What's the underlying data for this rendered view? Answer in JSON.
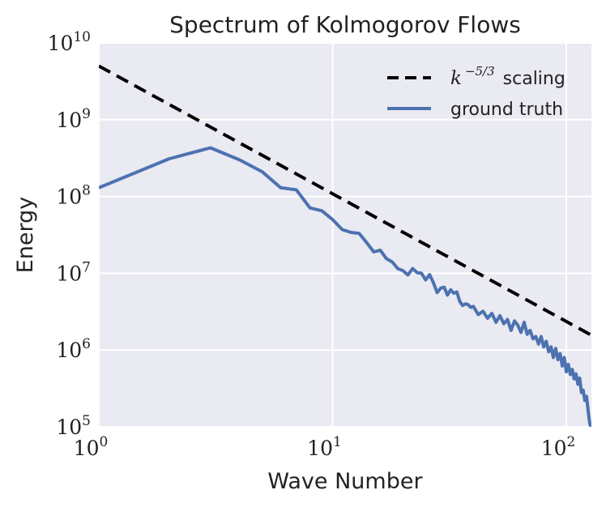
{
  "chart_data": {
    "type": "line",
    "title": "Spectrum of Kolmogorov Flows",
    "xlabel": "Wave Number",
    "ylabel": "Energy",
    "xscale": "log",
    "yscale": "log",
    "xlim": [
      1,
      128
    ],
    "ylim": [
      100000,
      10000000000
    ],
    "grid": true,
    "legend_position": "top-right",
    "x_ticks": [
      {
        "value": 1,
        "base": "10",
        "exp": "0"
      },
      {
        "value": 10,
        "base": "10",
        "exp": "1"
      },
      {
        "value": 100,
        "base": "10",
        "exp": "2"
      }
    ],
    "y_ticks": [
      {
        "value": 100000,
        "base": "10",
        "exp": "5"
      },
      {
        "value": 1000000,
        "base": "10",
        "exp": "6"
      },
      {
        "value": 10000000,
        "base": "10",
        "exp": "7"
      },
      {
        "value": 100000000,
        "base": "10",
        "exp": "8"
      },
      {
        "value": 1000000000,
        "base": "10",
        "exp": "9"
      },
      {
        "value": 10000000000,
        "base": "10",
        "exp": "10"
      }
    ],
    "series": [
      {
        "name": "k^{-5/3} scaling",
        "legend_base": "k",
        "legend_exp": "−5/3",
        "legend_suffix": "scaling",
        "style": "dashed",
        "color": "#000000",
        "x": [
          1,
          128
        ],
        "y": [
          5000000000,
          1560000
        ]
      },
      {
        "name": "ground truth",
        "legend_label": "ground truth",
        "style": "solid",
        "color": "#4c72b0",
        "x": [
          1,
          2,
          3,
          4,
          5,
          6,
          7,
          8,
          9,
          10,
          11,
          12,
          13,
          14,
          15,
          16,
          17,
          18,
          19,
          20,
          21,
          22,
          23,
          24,
          25,
          26,
          27,
          28,
          29,
          30,
          31,
          32,
          33,
          34,
          35,
          36,
          37,
          38,
          39,
          40,
          42,
          44,
          46,
          48,
          50,
          52,
          54,
          56,
          58,
          60,
          62,
          64,
          66,
          68,
          70,
          72,
          74,
          76,
          78,
          80,
          82,
          84,
          86,
          88,
          90,
          92,
          94,
          96,
          98,
          100,
          102,
          104,
          106,
          108,
          110,
          112,
          114,
          116,
          118,
          120,
          122,
          124,
          126,
          128
        ],
        "y": [
          130000000,
          310000000,
          430000000,
          300000000,
          210000000,
          130000000,
          122000000,
          71000000,
          65000000,
          50000000,
          37000000,
          34000000,
          33000000,
          25000000,
          19000000,
          20000000,
          15500000,
          14000000,
          11500000,
          10800000,
          9500000,
          11500000,
          10200000,
          10000000,
          8200000,
          9600000,
          7500000,
          5600000,
          6400000,
          6600000,
          5200000,
          6100000,
          5500000,
          5700000,
          4300000,
          3800000,
          4000000,
          3900000,
          3600000,
          3700000,
          2900000,
          3200000,
          2600000,
          3000000,
          2300000,
          2800000,
          2200000,
          2500000,
          1800000,
          2400000,
          2100000,
          1700000,
          2300000,
          1600000,
          1800000,
          1400000,
          1500000,
          1200000,
          1500000,
          1100000,
          1300000,
          950000,
          1100000,
          800000,
          1050000,
          750000,
          900000,
          620000,
          800000,
          520000,
          650000,
          480000,
          560000,
          420000,
          490000,
          360000,
          430000,
          280000,
          300000,
          220000,
          250000,
          160000,
          110000,
          95000
        ]
      }
    ]
  }
}
